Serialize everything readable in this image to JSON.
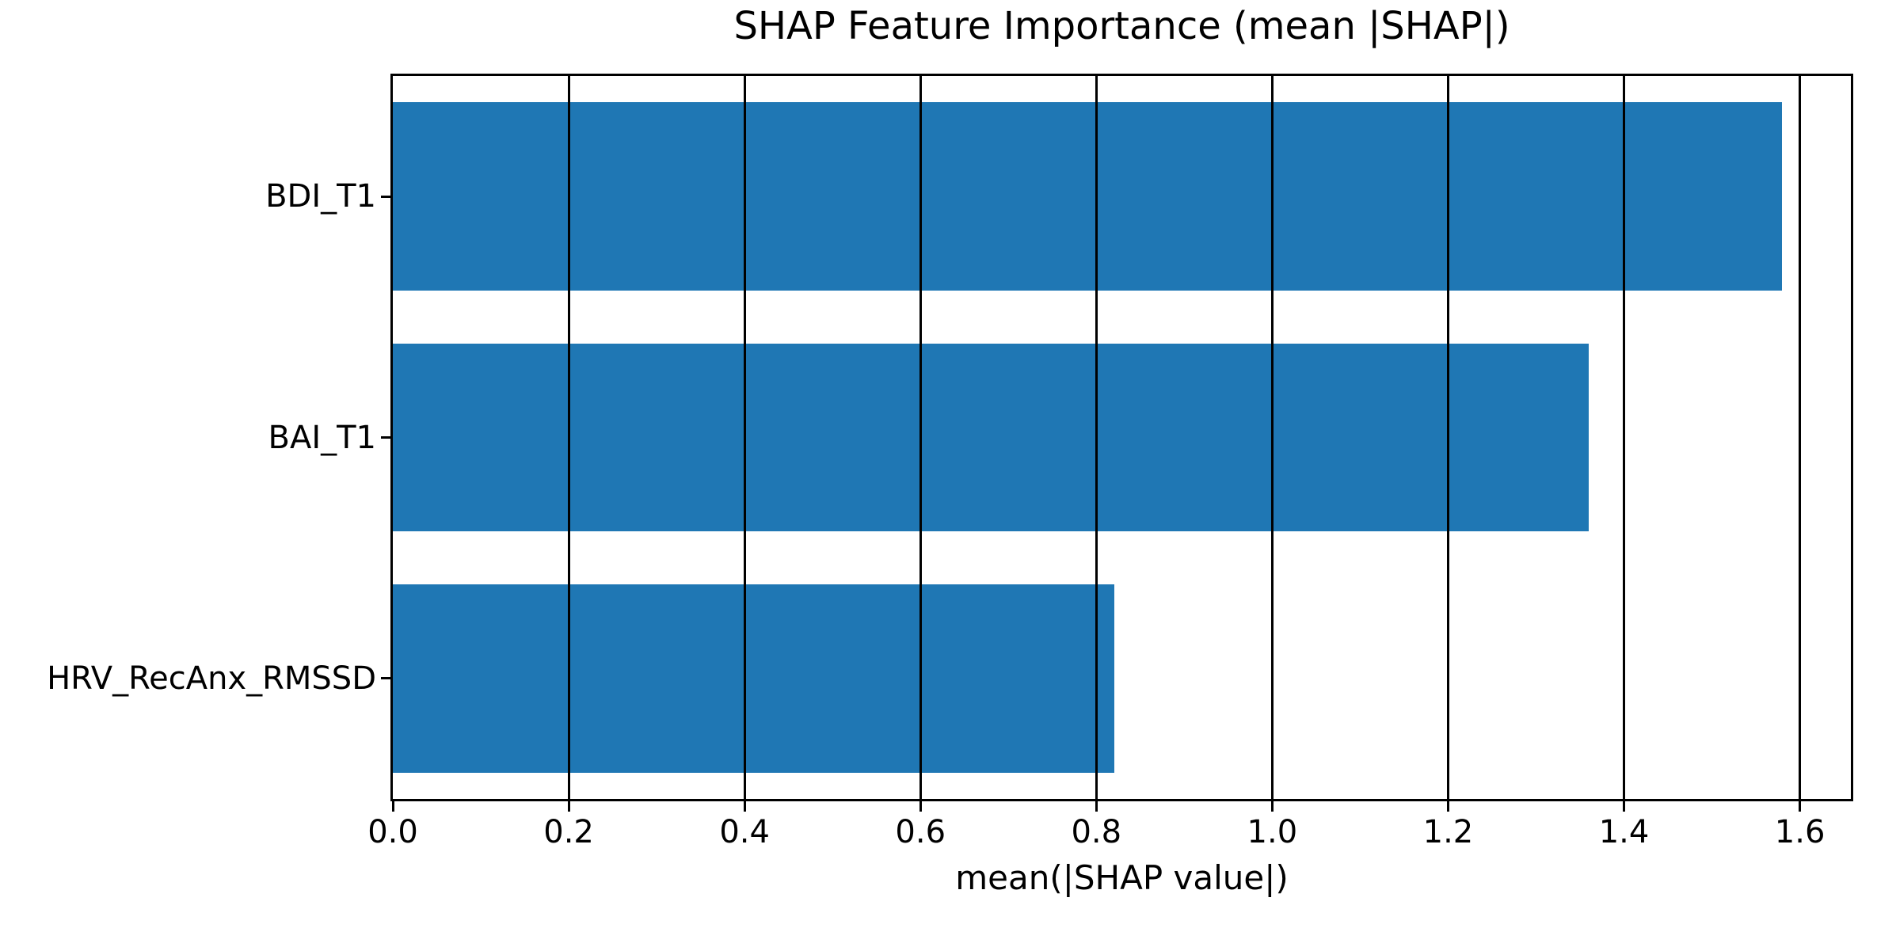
{
  "chart_data": {
    "type": "bar",
    "orientation": "horizontal",
    "title": "SHAP Feature Importance (mean |SHAP|)",
    "xlabel": "mean(|SHAP value|)",
    "ylabel": "",
    "categories": [
      "BDI_T1",
      "BAI_T1",
      "HRV_RecAnx_RMSSD"
    ],
    "values": [
      1.58,
      1.36,
      0.82
    ],
    "xticks": [
      0.0,
      0.2,
      0.4,
      0.6,
      0.8,
      1.0,
      1.2,
      1.4,
      1.6
    ],
    "xlim": [
      0,
      1.658
    ],
    "bar_color": "#1f77b4",
    "bar_height_fraction": 0.78,
    "grid": true,
    "grid_color": "#000000",
    "spine_color": "#000000",
    "background": "#ffffff",
    "legend": null
  }
}
